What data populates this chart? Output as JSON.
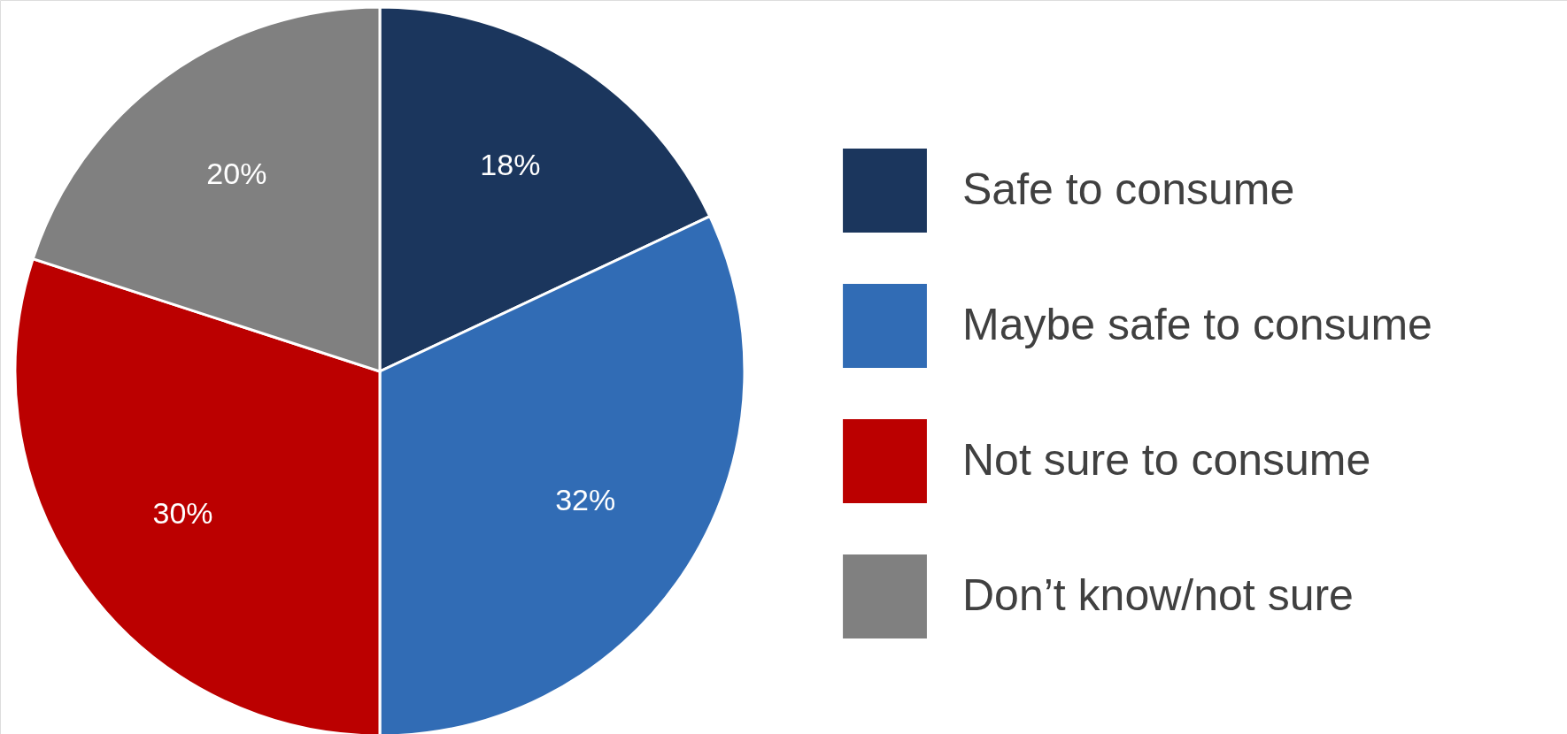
{
  "chart_data": {
    "type": "pie",
    "categories": [
      "Safe to consume",
      "Maybe safe to consume",
      "Not sure to consume",
      "Don’t know/not sure"
    ],
    "values": [
      18,
      32,
      30,
      20
    ],
    "value_labels": [
      "18%",
      "32%",
      "30%",
      "20%"
    ],
    "colors": [
      "#1b365d",
      "#316cb5",
      "#bb0000",
      "#808080"
    ],
    "legend": "right"
  }
}
